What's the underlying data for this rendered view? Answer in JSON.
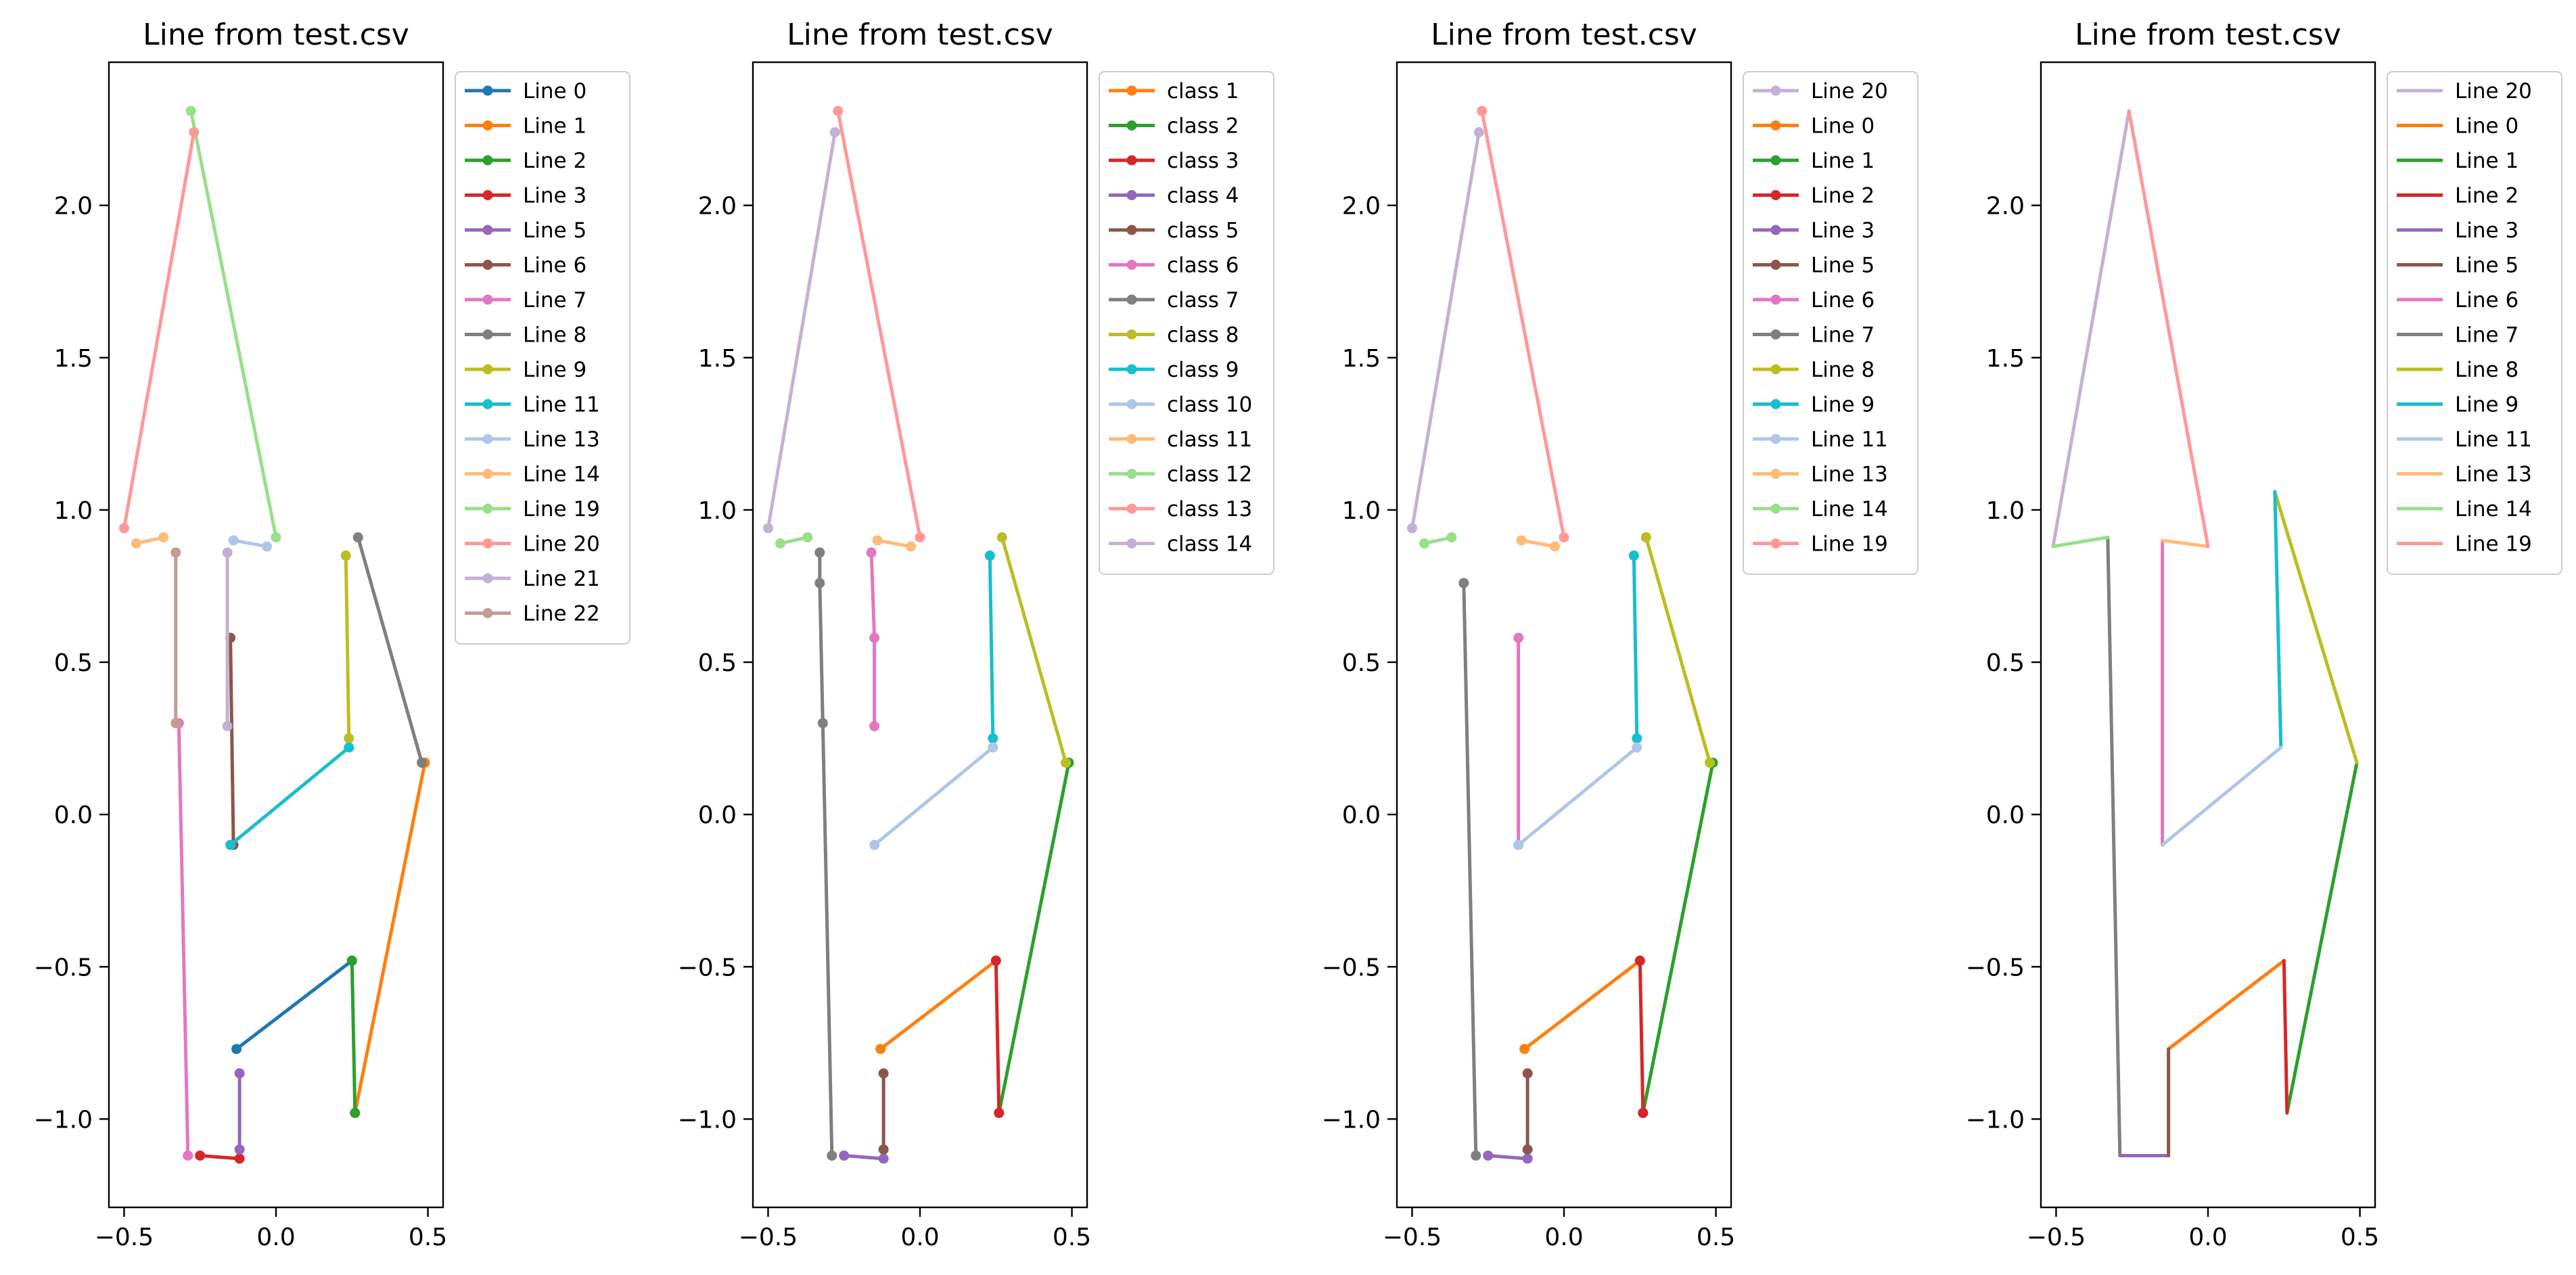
{
  "chart_data": [
    {
      "type": "line",
      "title": "Line from test.csv",
      "xlabel": "",
      "ylabel": "",
      "xlim": [
        -0.55,
        0.55
      ],
      "ylim": [
        -1.29,
        2.47
      ],
      "xticks": [
        -0.5,
        0.0,
        0.5
      ],
      "yticks": [
        -1.0,
        -0.5,
        0.0,
        0.5,
        1.0,
        1.5,
        2.0
      ],
      "markers": true,
      "legend_position": "outside-right",
      "series": [
        {
          "name": "Line 0",
          "color": "#1f77b4",
          "x": [
            -0.13,
            0.25
          ],
          "y": [
            -0.77,
            -0.48
          ]
        },
        {
          "name": "Line 1",
          "color": "#ff7f0e",
          "x": [
            0.26,
            0.49
          ],
          "y": [
            -0.98,
            0.17
          ]
        },
        {
          "name": "Line 2",
          "color": "#2ca02c",
          "x": [
            0.25,
            0.26
          ],
          "y": [
            -0.48,
            -0.98
          ]
        },
        {
          "name": "Line 3",
          "color": "#d62728",
          "x": [
            -0.25,
            -0.12
          ],
          "y": [
            -1.12,
            -1.13
          ]
        },
        {
          "name": "Line 5",
          "color": "#9467bd",
          "x": [
            -0.12,
            -0.12
          ],
          "y": [
            -1.1,
            -0.85
          ]
        },
        {
          "name": "Line 6",
          "color": "#8c564b",
          "x": [
            -0.15,
            -0.14
          ],
          "y": [
            0.58,
            -0.1
          ]
        },
        {
          "name": "Line 7",
          "color": "#e377c2",
          "x": [
            -0.29,
            -0.32
          ],
          "y": [
            -1.12,
            0.3
          ]
        },
        {
          "name": "Line 8",
          "color": "#7f7f7f",
          "x": [
            0.27,
            0.48
          ],
          "y": [
            0.91,
            0.17
          ]
        },
        {
          "name": "Line 9",
          "color": "#bcbd22",
          "x": [
            0.23,
            0.24
          ],
          "y": [
            0.85,
            0.25
          ]
        },
        {
          "name": "Line 11",
          "color": "#17becf",
          "x": [
            -0.15,
            0.24
          ],
          "y": [
            -0.1,
            0.22
          ]
        },
        {
          "name": "Line 13",
          "color": "#aec7e8",
          "x": [
            -0.14,
            -0.03
          ],
          "y": [
            0.9,
            0.88
          ]
        },
        {
          "name": "Line 14",
          "color": "#ffbb78",
          "x": [
            -0.46,
            -0.37
          ],
          "y": [
            0.89,
            0.91
          ]
        },
        {
          "name": "Line 19",
          "color": "#98df8a",
          "x": [
            -0.28,
            0.0
          ],
          "y": [
            2.31,
            0.91
          ]
        },
        {
          "name": "Line 20",
          "color": "#ff9896",
          "x": [
            -0.27,
            -0.5
          ],
          "y": [
            2.24,
            0.94
          ]
        },
        {
          "name": "Line 21",
          "color": "#c5b0d5",
          "x": [
            -0.16,
            -0.16
          ],
          "y": [
            0.86,
            0.29
          ]
        },
        {
          "name": "Line 22",
          "color": "#c49c94",
          "x": [
            -0.33,
            -0.33
          ],
          "y": [
            0.86,
            0.3
          ]
        }
      ]
    },
    {
      "type": "line",
      "title": "Line from test.csv",
      "xlabel": "",
      "ylabel": "",
      "xlim": [
        -0.55,
        0.55
      ],
      "ylim": [
        -1.29,
        2.47
      ],
      "xticks": [
        -0.5,
        0.0,
        0.5
      ],
      "yticks": [
        -1.0,
        -0.5,
        0.0,
        0.5,
        1.0,
        1.5,
        2.0
      ],
      "markers": true,
      "legend_position": "outside-right",
      "series": [
        {
          "name": "class 1",
          "color": "#ff7f0e",
          "x": [
            -0.13,
            0.25
          ],
          "y": [
            -0.77,
            -0.48
          ]
        },
        {
          "name": "class 2",
          "color": "#2ca02c",
          "x": [
            0.26,
            0.49
          ],
          "y": [
            -0.98,
            0.17
          ]
        },
        {
          "name": "class 3",
          "color": "#d62728",
          "x": [
            0.25,
            0.26
          ],
          "y": [
            -0.48,
            -0.98
          ]
        },
        {
          "name": "class 4",
          "color": "#9467bd",
          "x": [
            -0.25,
            -0.12
          ],
          "y": [
            -1.12,
            -1.13
          ]
        },
        {
          "name": "class 5",
          "color": "#8c564b",
          "x": [
            -0.12,
            -0.12
          ],
          "y": [
            -1.1,
            -0.85
          ]
        },
        {
          "name": "class 6",
          "color": "#e377c2",
          "x": [
            -0.16,
            -0.15,
            -0.15
          ],
          "y": [
            0.86,
            0.58,
            0.29
          ]
        },
        {
          "name": "class 7",
          "color": "#7f7f7f",
          "x": [
            -0.29,
            -0.32,
            -0.33,
            -0.33
          ],
          "y": [
            -1.12,
            0.3,
            0.76,
            0.86
          ]
        },
        {
          "name": "class 8",
          "color": "#bcbd22",
          "x": [
            0.27,
            0.48
          ],
          "y": [
            0.91,
            0.17
          ]
        },
        {
          "name": "class 9",
          "color": "#17becf",
          "x": [
            0.23,
            0.24
          ],
          "y": [
            0.85,
            0.25
          ]
        },
        {
          "name": "class 10",
          "color": "#aec7e8",
          "x": [
            -0.15,
            0.24
          ],
          "y": [
            -0.1,
            0.22
          ]
        },
        {
          "name": "class 11",
          "color": "#ffbb78",
          "x": [
            -0.14,
            -0.03
          ],
          "y": [
            0.9,
            0.88
          ]
        },
        {
          "name": "class 12",
          "color": "#98df8a",
          "x": [
            -0.46,
            -0.37
          ],
          "y": [
            0.89,
            0.91
          ]
        },
        {
          "name": "class 13",
          "color": "#ff9896",
          "x": [
            -0.27,
            0.0
          ],
          "y": [
            2.31,
            0.91
          ]
        },
        {
          "name": "class 14",
          "color": "#c5b0d5",
          "x": [
            -0.28,
            -0.5
          ],
          "y": [
            2.24,
            0.94
          ]
        }
      ]
    },
    {
      "type": "line",
      "title": "Line from test.csv",
      "xlabel": "",
      "ylabel": "",
      "xlim": [
        -0.55,
        0.55
      ],
      "ylim": [
        -1.29,
        2.47
      ],
      "xticks": [
        -0.5,
        0.0,
        0.5
      ],
      "yticks": [
        -1.0,
        -0.5,
        0.0,
        0.5,
        1.0,
        1.5,
        2.0
      ],
      "markers": true,
      "legend_position": "outside-right",
      "series": [
        {
          "name": "Line 20",
          "color": "#c5b0d5",
          "x": [
            -0.28,
            -0.5
          ],
          "y": [
            2.24,
            0.94
          ]
        },
        {
          "name": "Line 0",
          "color": "#ff7f0e",
          "x": [
            -0.13,
            0.25
          ],
          "y": [
            -0.77,
            -0.48
          ]
        },
        {
          "name": "Line 1",
          "color": "#2ca02c",
          "x": [
            0.26,
            0.49
          ],
          "y": [
            -0.98,
            0.17
          ]
        },
        {
          "name": "Line 2",
          "color": "#d62728",
          "x": [
            0.25,
            0.26
          ],
          "y": [
            -0.48,
            -0.98
          ]
        },
        {
          "name": "Line 3",
          "color": "#9467bd",
          "x": [
            -0.25,
            -0.12
          ],
          "y": [
            -1.12,
            -1.13
          ]
        },
        {
          "name": "Line 5",
          "color": "#8c564b",
          "x": [
            -0.12,
            -0.12
          ],
          "y": [
            -1.1,
            -0.85
          ]
        },
        {
          "name": "Line 6",
          "color": "#e377c2",
          "x": [
            -0.15,
            -0.15
          ],
          "y": [
            0.58,
            -0.1
          ]
        },
        {
          "name": "Line 7",
          "color": "#7f7f7f",
          "x": [
            -0.29,
            -0.33
          ],
          "y": [
            -1.12,
            0.76
          ]
        },
        {
          "name": "Line 8",
          "color": "#bcbd22",
          "x": [
            0.27,
            0.48
          ],
          "y": [
            0.91,
            0.17
          ]
        },
        {
          "name": "Line 9",
          "color": "#17becf",
          "x": [
            0.23,
            0.24
          ],
          "y": [
            0.85,
            0.25
          ]
        },
        {
          "name": "Line 11",
          "color": "#aec7e8",
          "x": [
            -0.15,
            0.24
          ],
          "y": [
            -0.1,
            0.22
          ]
        },
        {
          "name": "Line 13",
          "color": "#ffbb78",
          "x": [
            -0.14,
            -0.03
          ],
          "y": [
            0.9,
            0.88
          ]
        },
        {
          "name": "Line 14",
          "color": "#98df8a",
          "x": [
            -0.46,
            -0.37
          ],
          "y": [
            0.89,
            0.91
          ]
        },
        {
          "name": "Line 19",
          "color": "#ff9896",
          "x": [
            -0.27,
            0.0
          ],
          "y": [
            2.31,
            0.91
          ]
        }
      ]
    },
    {
      "type": "line",
      "title": "Line from test.csv",
      "xlabel": "",
      "ylabel": "",
      "xlim": [
        -0.55,
        0.55
      ],
      "ylim": [
        -1.29,
        2.47
      ],
      "xticks": [
        -0.5,
        0.0,
        0.5
      ],
      "yticks": [
        -1.0,
        -0.5,
        0.0,
        0.5,
        1.0,
        1.5,
        2.0
      ],
      "markers": false,
      "legend_position": "outside-right",
      "series": [
        {
          "name": "Line 20",
          "color": "#c5b0d5",
          "x": [
            -0.26,
            -0.51
          ],
          "y": [
            2.31,
            0.88
          ]
        },
        {
          "name": "Line 0",
          "color": "#ff7f0e",
          "x": [
            -0.13,
            0.25
          ],
          "y": [
            -0.77,
            -0.48
          ]
        },
        {
          "name": "Line 1",
          "color": "#2ca02c",
          "x": [
            0.26,
            0.49
          ],
          "y": [
            -0.98,
            0.17
          ]
        },
        {
          "name": "Line 2",
          "color": "#d62728",
          "x": [
            0.25,
            0.26
          ],
          "y": [
            -0.48,
            -0.98
          ]
        },
        {
          "name": "Line 3",
          "color": "#9467bd",
          "x": [
            -0.29,
            -0.13
          ],
          "y": [
            -1.12,
            -1.12
          ]
        },
        {
          "name": "Line 5",
          "color": "#8c564b",
          "x": [
            -0.13,
            -0.13
          ],
          "y": [
            -1.12,
            -0.77
          ]
        },
        {
          "name": "Line 6",
          "color": "#e377c2",
          "x": [
            -0.15,
            -0.15
          ],
          "y": [
            0.9,
            -0.1
          ]
        },
        {
          "name": "Line 7",
          "color": "#7f7f7f",
          "x": [
            -0.29,
            -0.33
          ],
          "y": [
            -1.12,
            0.91
          ]
        },
        {
          "name": "Line 8",
          "color": "#bcbd22",
          "x": [
            0.22,
            0.49
          ],
          "y": [
            1.06,
            0.17
          ]
        },
        {
          "name": "Line 9",
          "color": "#17becf",
          "x": [
            0.22,
            0.24
          ],
          "y": [
            1.06,
            0.22
          ]
        },
        {
          "name": "Line 11",
          "color": "#aec7e8",
          "x": [
            -0.15,
            0.24
          ],
          "y": [
            -0.1,
            0.22
          ]
        },
        {
          "name": "Line 13",
          "color": "#ffbb78",
          "x": [
            -0.15,
            0.0
          ],
          "y": [
            0.9,
            0.88
          ]
        },
        {
          "name": "Line 14",
          "color": "#98df8a",
          "x": [
            -0.51,
            -0.33
          ],
          "y": [
            0.88,
            0.91
          ]
        },
        {
          "name": "Line 19",
          "color": "#ff9896",
          "x": [
            -0.26,
            0.0
          ],
          "y": [
            2.31,
            0.88
          ]
        }
      ]
    }
  ]
}
